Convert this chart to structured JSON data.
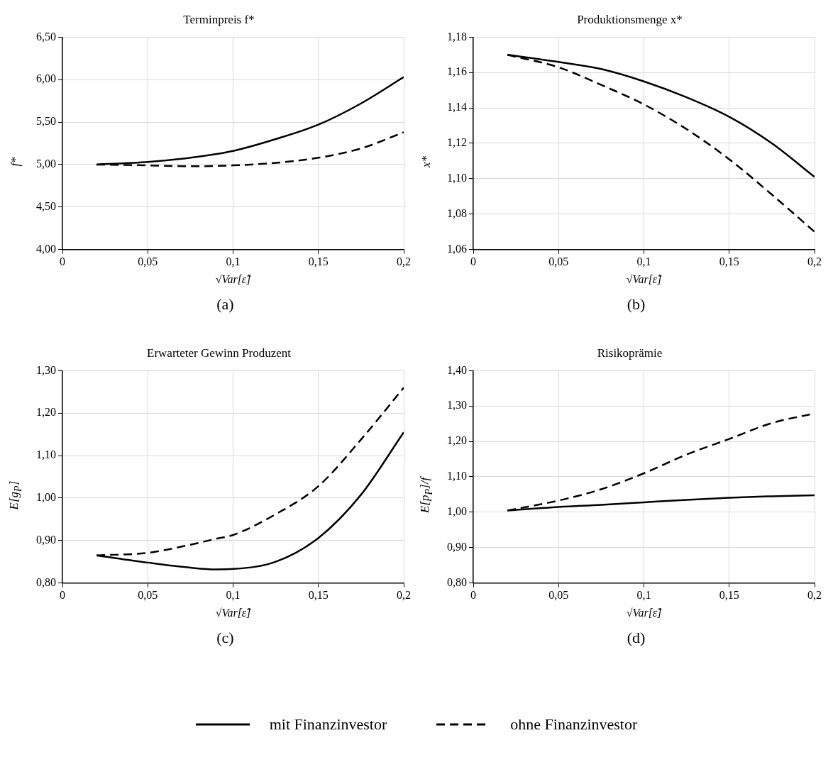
{
  "chart_data": [
    {
      "type": "line",
      "title": "Terminpreis f*",
      "ylabel": "f*",
      "xlabel": "√Var[ε̃]",
      "annotations": [
        "(a)"
      ],
      "grid": true,
      "marker": "none",
      "xlim": [
        0,
        0.2
      ],
      "xticks": [
        {
          "value": 0,
          "label": "0"
        },
        {
          "value": 0.05,
          "label": "0,05"
        },
        {
          "value": 0.1,
          "label": "0,1"
        },
        {
          "value": 0.15,
          "label": "0,15"
        },
        {
          "value": 0.2,
          "label": "0,2"
        }
      ],
      "ylim": [
        4,
        6.5
      ],
      "yticks": [
        {
          "value": 4,
          "label": "4,00"
        },
        {
          "value": 4.5,
          "label": "4,50"
        },
        {
          "value": 5,
          "label": "5,00"
        },
        {
          "value": 5.5,
          "label": "5,50"
        },
        {
          "value": 6,
          "label": "6,00"
        },
        {
          "value": 6.5,
          "label": "6,50"
        }
      ],
      "x": [
        0.02,
        0.05,
        0.075,
        0.1,
        0.125,
        0.15,
        0.175,
        0.2
      ],
      "series": [
        {
          "color": "#000000",
          "line_style": "solid",
          "values": [
            5.0,
            5.03,
            5.08,
            5.16,
            5.3,
            5.47,
            5.72,
            6.03
          ]
        },
        {
          "color": "#000000",
          "line_style": "dashed",
          "values": [
            5.0,
            4.99,
            4.98,
            4.99,
            5.02,
            5.08,
            5.19,
            5.38
          ]
        }
      ]
    },
    {
      "type": "line",
      "title": "Produktionsmenge x*",
      "ylabel": "x*",
      "xlabel": "√Var[ε̃]",
      "annotations": [
        "(b)"
      ],
      "grid": true,
      "marker": "none",
      "xlim": [
        0,
        0.2
      ],
      "xticks": [
        {
          "value": 0,
          "label": "0"
        },
        {
          "value": 0.05,
          "label": "0,05"
        },
        {
          "value": 0.1,
          "label": "0,1"
        },
        {
          "value": 0.15,
          "label": "0,15"
        },
        {
          "value": 0.2,
          "label": "0,2"
        }
      ],
      "ylim": [
        1.06,
        1.18
      ],
      "yticks": [
        {
          "value": 1.06,
          "label": "1,06"
        },
        {
          "value": 1.08,
          "label": "1,08"
        },
        {
          "value": 1.1,
          "label": "1,10"
        },
        {
          "value": 1.12,
          "label": "1,12"
        },
        {
          "value": 1.14,
          "label": "1,14"
        },
        {
          "value": 1.16,
          "label": "1,16"
        },
        {
          "value": 1.18,
          "label": "1,18"
        }
      ],
      "x": [
        0.02,
        0.05,
        0.075,
        0.1,
        0.125,
        0.15,
        0.175,
        0.2
      ],
      "series": [
        {
          "color": "#000000",
          "line_style": "solid",
          "values": [
            1.17,
            1.166,
            1.162,
            1.155,
            1.146,
            1.135,
            1.12,
            1.101
          ]
        },
        {
          "color": "#000000",
          "line_style": "dashed",
          "values": [
            1.17,
            1.163,
            1.153,
            1.142,
            1.128,
            1.111,
            1.091,
            1.07
          ]
        }
      ]
    },
    {
      "type": "line",
      "title": "Erwarteter Gewinn Produzent",
      "ylabel": "E[g$_{P}$]",
      "xlabel": "√Var[ε̃]",
      "annotations": [
        "(c)"
      ],
      "grid": true,
      "marker": "none",
      "xlim": [
        0,
        0.2
      ],
      "xticks": [
        {
          "value": 0,
          "label": "0"
        },
        {
          "value": 0.05,
          "label": "0,05"
        },
        {
          "value": 0.1,
          "label": "0,1"
        },
        {
          "value": 0.15,
          "label": "0,15"
        },
        {
          "value": 0.2,
          "label": "0,2"
        }
      ],
      "ylim": [
        0.8,
        1.3
      ],
      "yticks": [
        {
          "value": 0.8,
          "label": "0,80"
        },
        {
          "value": 0.9,
          "label": "0,90"
        },
        {
          "value": 1,
          "label": "1,00"
        },
        {
          "value": 1.1,
          "label": "1,10"
        },
        {
          "value": 1.2,
          "label": "1,20"
        },
        {
          "value": 1.3,
          "label": "1,30"
        }
      ],
      "x": [
        0.02,
        0.05,
        0.075,
        0.09,
        0.1,
        0.125,
        0.15,
        0.175,
        0.2
      ],
      "series": [
        {
          "color": "#000000",
          "line_style": "solid",
          "values": [
            0.865,
            0.848,
            0.836,
            0.832,
            0.833,
            0.85,
            0.906,
            1.008,
            1.155
          ]
        },
        {
          "color": "#000000",
          "line_style": "dashed",
          "values": [
            0.865,
            0.871,
            0.89,
            0.904,
            0.913,
            0.962,
            1.028,
            1.138,
            1.26
          ]
        }
      ]
    },
    {
      "type": "line",
      "title": "Risikoprämie",
      "ylabel": "E[p$_{P}$]/f",
      "xlabel": "√Var[ε̃]",
      "annotations": [
        "(d)"
      ],
      "grid": true,
      "marker": "none",
      "legend": "bottom",
      "xlim": [
        0,
        0.2
      ],
      "xticks": [
        {
          "value": 0,
          "label": "0"
        },
        {
          "value": 0.05,
          "label": "0,05"
        },
        {
          "value": 0.1,
          "label": "0,1"
        },
        {
          "value": 0.15,
          "label": "0,15"
        },
        {
          "value": 0.2,
          "label": "0,2"
        }
      ],
      "ylim": [
        0.8,
        1.4
      ],
      "yticks": [
        {
          "value": 0.8,
          "label": "0,80"
        },
        {
          "value": 0.9,
          "label": "0,90"
        },
        {
          "value": 1,
          "label": "1,00"
        },
        {
          "value": 1.1,
          "label": "1,10"
        },
        {
          "value": 1.2,
          "label": "1,20"
        },
        {
          "value": 1.3,
          "label": "1,30"
        },
        {
          "value": 1.4,
          "label": "1,40"
        }
      ],
      "x": [
        0.02,
        0.05,
        0.075,
        0.1,
        0.125,
        0.15,
        0.175,
        0.2
      ],
      "series": [
        {
          "name": "mit Finanzinvestor",
          "color": "#000000",
          "line_style": "solid",
          "values": [
            1.005,
            1.015,
            1.021,
            1.028,
            1.035,
            1.041,
            1.045,
            1.048
          ]
        },
        {
          "name": "ohne Finanzinvestor",
          "color": "#000000",
          "line_style": "dashed",
          "values": [
            1.005,
            1.033,
            1.065,
            1.11,
            1.163,
            1.207,
            1.252,
            1.279
          ]
        }
      ]
    }
  ]
}
